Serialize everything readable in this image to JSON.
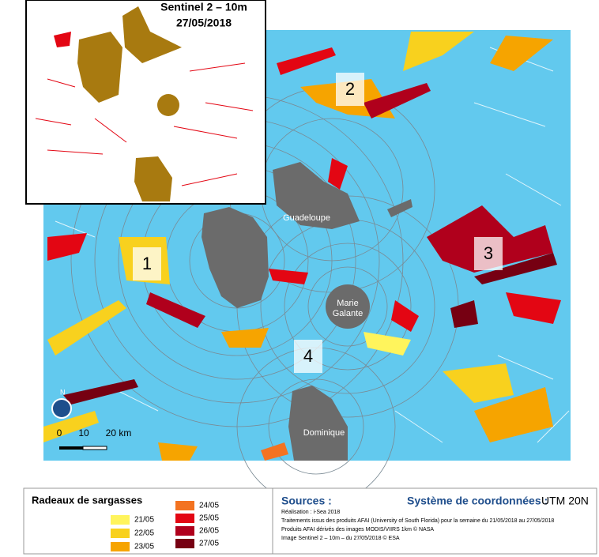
{
  "inset": {
    "title": "Sentinel 2 – 10m",
    "date": "27/05/2018"
  },
  "map": {
    "places": [
      "Guadeloupe",
      "Dominique"
    ],
    "marie_galante": [
      "Marie",
      "Galante"
    ],
    "zones": [
      "1",
      "2",
      "3",
      "4"
    ],
    "scale": [
      "0",
      "10",
      "20 km"
    ],
    "north": "N"
  },
  "legend": {
    "title": "Radeaux de sargasses",
    "items": [
      {
        "label": "21/05",
        "color": "#fff45c"
      },
      {
        "label": "22/05",
        "color": "#f8d11e"
      },
      {
        "label": "23/05",
        "color": "#f6a400"
      },
      {
        "label": "24/05",
        "color": "#f37321"
      },
      {
        "label": "25/05",
        "color": "#e30613"
      },
      {
        "label": "26/05",
        "color": "#b0001c"
      },
      {
        "label": "27/05",
        "color": "#760012"
      }
    ]
  },
  "sources": {
    "title": "Sources :",
    "lines": [
      "Réalisation : i-Sea 2018",
      "Traitements issus des produits AFAI (University of South Florida) pour la semaine du 21/05/2018 au 27/05/2018",
      "Produits AFAI dérivés des images MODIS/VIIRS 1km © NASA",
      "Image Sentinel 2 – 10m – du 27/05/2018 © ESA"
    ]
  },
  "crs": {
    "label": "Système de coordonnées :",
    "value": "UTM 20N"
  }
}
